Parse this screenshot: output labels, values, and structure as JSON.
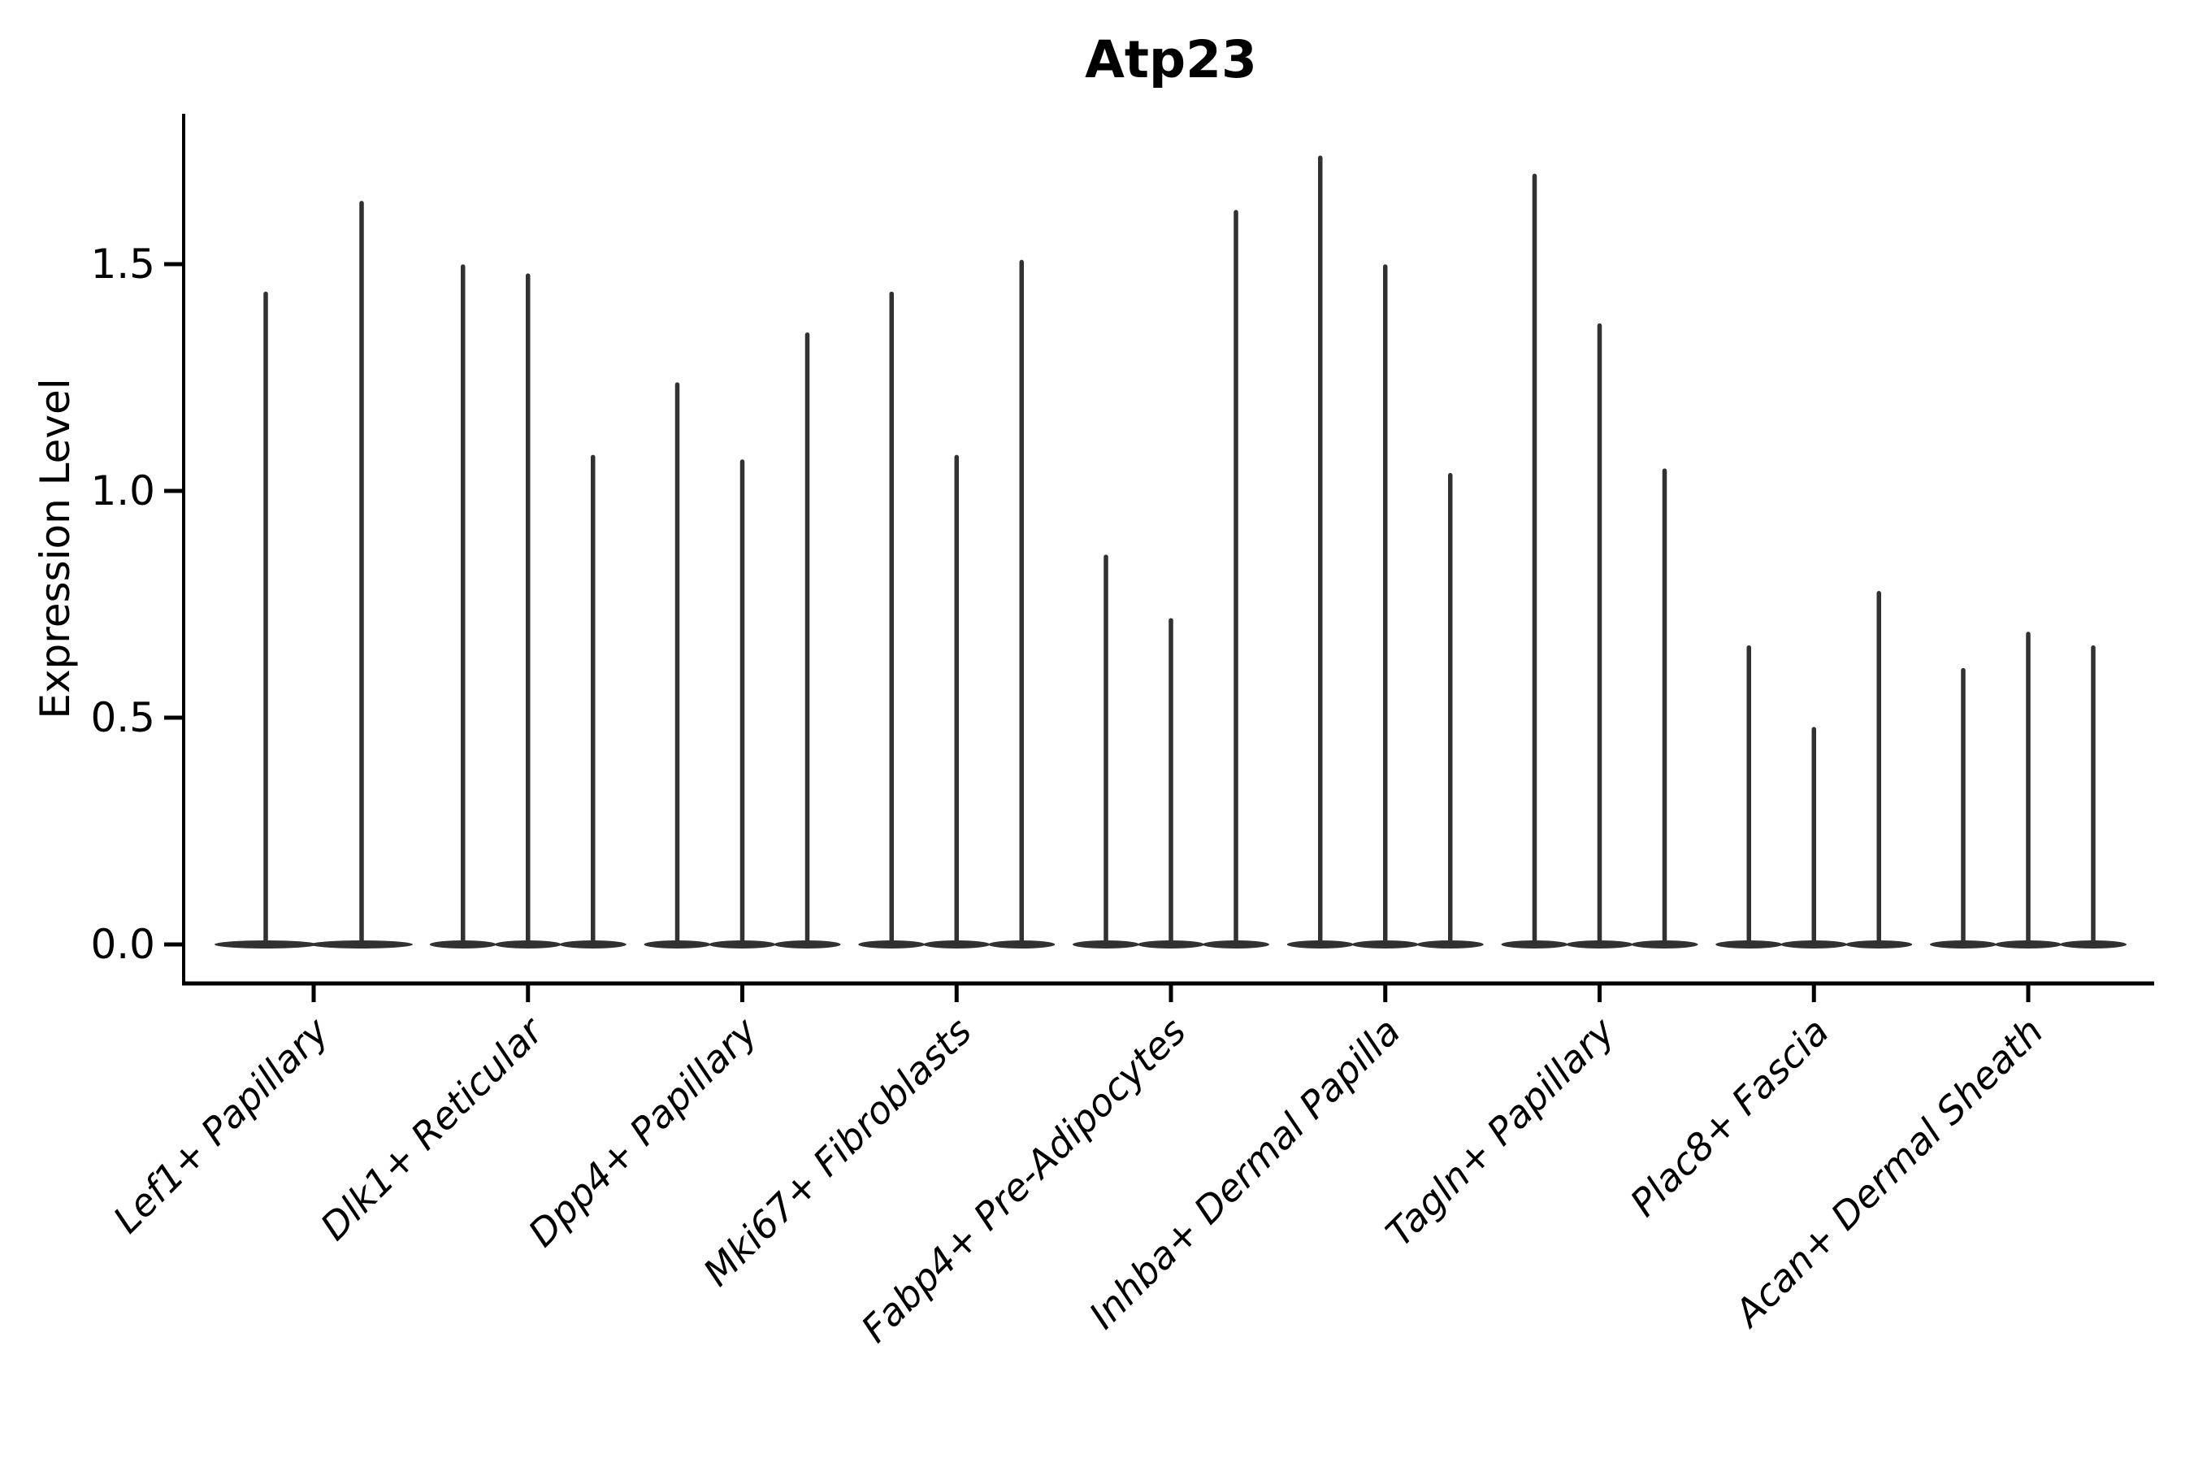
{
  "chart_data": {
    "type": "violin",
    "title": "Atp23",
    "ylabel": "Expression Level",
    "xlabel": "",
    "yticks": [
      0,
      0.5,
      1.0,
      1.5
    ],
    "y_tick_labels": [
      "0.0",
      "0.5",
      "1.0",
      "1.5"
    ],
    "ylim": [
      -0.05,
      1.83
    ],
    "grid": false,
    "legend": "none",
    "violin_color": "#313131",
    "axis_color": "#000000",
    "background_color": "#ffffff",
    "categories": [
      {
        "label": "Lef1+ Papillary",
        "violin_max_values": [
          1.44,
          1.64
        ]
      },
      {
        "label": "Dlk1+ Reticular",
        "violin_max_values": [
          1.5,
          1.48,
          1.08
        ]
      },
      {
        "label": "Dpp4+ Papillary",
        "violin_max_values": [
          1.24,
          1.07,
          1.35
        ]
      },
      {
        "label": "Mki67+ Fibroblasts",
        "violin_max_values": [
          1.44,
          1.08,
          1.51
        ]
      },
      {
        "label": "Fabp4+ Pre-Adipocytes",
        "violin_max_values": [
          0.86,
          0.72,
          1.62
        ]
      },
      {
        "label": "Inhba+ Dermal Papilla",
        "violin_max_values": [
          1.74,
          1.5,
          1.04
        ]
      },
      {
        "label": "Tagln+ Papillary",
        "violin_max_values": [
          1.7,
          1.37,
          1.05
        ]
      },
      {
        "label": "Plac8+ Fascia",
        "violin_max_values": [
          0.66,
          0.48,
          0.78
        ]
      },
      {
        "label": "Acan+ Dermal Sheath",
        "violin_max_values": [
          0.61,
          0.69,
          0.66
        ]
      }
    ]
  }
}
